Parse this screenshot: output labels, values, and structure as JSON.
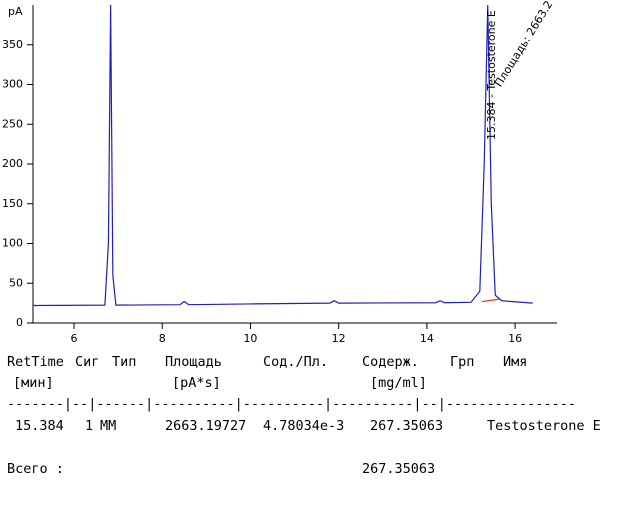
{
  "chart_data": {
    "type": "line",
    "y_label": "pA",
    "xlim": [
      5.07,
      16.95
    ],
    "xticks": [
      6,
      8,
      10,
      12,
      14,
      16
    ],
    "ylim": [
      0,
      400
    ],
    "yticks": [
      0,
      50,
      100,
      150,
      200,
      250,
      300,
      350
    ],
    "series": [
      {
        "color": "#1f1fb4",
        "x": [
          5.07,
          6.7,
          6.78,
          6.83,
          6.88,
          6.95,
          8.4,
          8.5,
          8.6,
          10,
          11.8,
          11.9,
          12.0,
          14.2,
          14.3,
          14.4,
          15.0,
          15.2,
          15.3,
          15.38,
          15.46,
          15.55,
          15.7,
          16.4
        ],
        "values": [
          22,
          22.5,
          100,
          400,
          60,
          22.5,
          23,
          27,
          23,
          24,
          25,
          28,
          25,
          25.5,
          28,
          25.5,
          26,
          40,
          200,
          400,
          150,
          35,
          28,
          25
        ]
      },
      {
        "color": "#e03030",
        "x": [
          15.25,
          15.65
        ],
        "values": [
          27,
          30
        ]
      }
    ],
    "annotations": [
      {
        "text": "15.384 - Testosterone E",
        "x": 15.384
      },
      {
        "text": "Площадь: 2663.2",
        "x": 15.384
      }
    ]
  },
  "report": {
    "header": [
      "RetTime",
      "Сиг",
      "Тип",
      "Площадь",
      "Сод./Пл.",
      "Содерж.",
      "Грп",
      "Имя"
    ],
    "units": [
      "[мин]",
      "[pA*s]",
      "[mg/ml]"
    ],
    "separator": "-------|--|------|----------|----------|----------|--|----------------",
    "row": [
      "15.384",
      "1",
      "MM",
      "2663.19727",
      "4.78034e-3",
      "267.35063",
      "Testosterone E"
    ],
    "total_label": "Всего :",
    "total": "267.35063"
  }
}
